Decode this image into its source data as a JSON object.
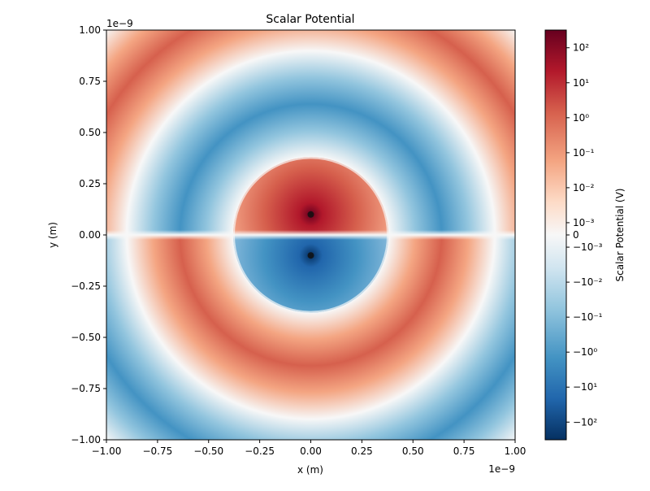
{
  "chart_data": {
    "type": "heatmap",
    "title": "Scalar Potential",
    "x_label": "x (m)",
    "y_label": "y (m)",
    "x_offset": "1e−9",
    "y_offset": "1e−9",
    "xlim": [
      -1,
      1
    ],
    "ylim": [
      -1,
      1
    ],
    "xticks": [
      {
        "value": -1,
        "label": "−1.00"
      },
      {
        "value": -0.75,
        "label": "−0.75"
      },
      {
        "value": -0.5,
        "label": "−0.50"
      },
      {
        "value": -0.25,
        "label": "−0.25"
      },
      {
        "value": 0,
        "label": "0.00"
      },
      {
        "value": 0.25,
        "label": "0.25"
      },
      {
        "value": 0.5,
        "label": "0.50"
      },
      {
        "value": 0.75,
        "label": "0.75"
      },
      {
        "value": 1,
        "label": "1.00"
      }
    ],
    "yticks": [
      {
        "value": -1,
        "label": "−1.00"
      },
      {
        "value": -0.75,
        "label": "−0.75"
      },
      {
        "value": -0.5,
        "label": "−0.50"
      },
      {
        "value": -0.25,
        "label": "−0.25"
      },
      {
        "value": 0,
        "label": "0.00"
      },
      {
        "value": 0.25,
        "label": "0.25"
      },
      {
        "value": 0.5,
        "label": "0.50"
      },
      {
        "value": 0.75,
        "label": "0.75"
      },
      {
        "value": 1,
        "label": "1.00"
      }
    ],
    "rings": [
      {
        "inner": 0.9,
        "outer": 1.42,
        "sign": 1
      },
      {
        "inner": 0.38,
        "outer": 0.9,
        "sign": -1
      },
      {
        "inner": 0,
        "outer": 0.38,
        "sign": 1
      }
    ],
    "charges": [
      {
        "x": 0,
        "y": 0.1
      },
      {
        "x": 0,
        "y": -0.1
      }
    ],
    "colorbar": {
      "label": "Scalar Potential (V)",
      "scale": "symlog",
      "linthresh": 0.001,
      "linscale": 0.35,
      "clim": [
        -320,
        320
      ],
      "ticks": [
        {
          "value": 100,
          "label": "10²"
        },
        {
          "value": 10,
          "label": "10¹"
        },
        {
          "value": 1,
          "label": "10⁰"
        },
        {
          "value": 0.1,
          "label": "10⁻¹"
        },
        {
          "value": 0.01,
          "label": "10⁻²"
        },
        {
          "value": 0.001,
          "label": "10⁻³"
        },
        0,
        {
          "value": -0.001,
          "label": "−10⁻³"
        },
        {
          "value": -0.01,
          "label": "−10⁻²"
        },
        {
          "value": -0.1,
          "label": "−10⁻¹"
        },
        {
          "value": -1,
          "label": "−10⁰"
        },
        {
          "value": -10,
          "label": "−10¹"
        },
        {
          "value": -100,
          "label": "−10²"
        }
      ]
    }
  }
}
